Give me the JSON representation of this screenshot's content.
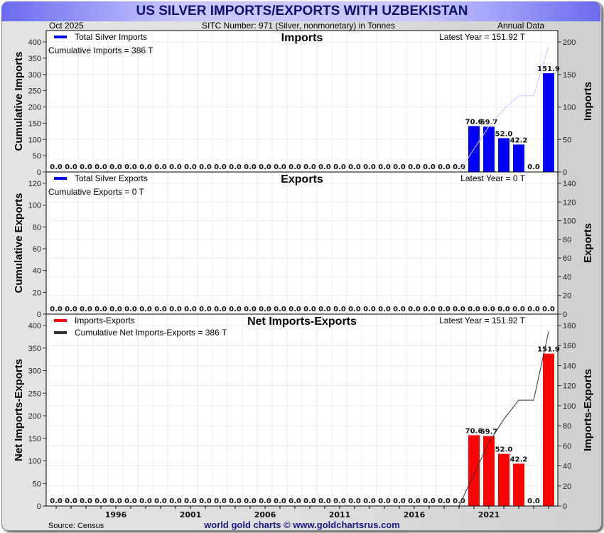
{
  "header": {
    "title": "US SILVER IMPORTS/EXPORTS WITH UZBEKISTAN",
    "date": "Oct  2025",
    "sitc": "SITC Number: 971 (Silver, nonmonetary) in Tonnes",
    "frequency": "Annual Data"
  },
  "footer": {
    "source": "Source: Census",
    "credit": "world gold charts © www.goldchartsrus.com"
  },
  "colors": {
    "imports": "#0000ff",
    "net": "#ff0000",
    "cum_imports": "#c8c8ff",
    "cum_net": "#333333"
  },
  "chart_data": [
    {
      "type": "bar",
      "title": "Imports",
      "legend": "Total Silver Imports",
      "cumulative_text": "Cumulative Imports = 386 T",
      "latest_text": "Latest Year = 151.92 T",
      "ylabel_left": "Cumulative Imports",
      "ylabel_right": "Imports",
      "ylim_left": [
        0,
        400
      ],
      "ylim_right": [
        0,
        200
      ],
      "yticks_left": [
        "0",
        "50",
        "100",
        "150",
        "200",
        "250",
        "300",
        "350",
        "400"
      ],
      "yticks_right": [
        "0",
        "50",
        "100",
        "150",
        "200"
      ],
      "x": [
        1992,
        1993,
        1994,
        1995,
        1996,
        1997,
        1998,
        1999,
        2000,
        2001,
        2002,
        2003,
        2004,
        2005,
        2006,
        2007,
        2008,
        2009,
        2010,
        2011,
        2012,
        2013,
        2014,
        2015,
        2016,
        2017,
        2018,
        2019,
        2020,
        2021,
        2022,
        2023,
        2024,
        2025
      ],
      "values": [
        0,
        0,
        0,
        0,
        0,
        0,
        0,
        0,
        0,
        0,
        0,
        0,
        0,
        0,
        0,
        0,
        0,
        0,
        0,
        0,
        0,
        0,
        0,
        0,
        0,
        0,
        0,
        0,
        70.6,
        69.7,
        52.0,
        42.2,
        0,
        151.9
      ],
      "labels": [
        "0.0",
        "0.0",
        "0.0",
        "0.0",
        "0.0",
        "0.0",
        "0.0",
        "0.0",
        "0.0",
        "0.0",
        "0.0",
        "0.0",
        "0.0",
        "0.0",
        "0.0",
        "0.0",
        "0.0",
        "0.0",
        "0.0",
        "0.0",
        "0.0",
        "0.0",
        "0.0",
        "0.0",
        "0.0",
        "0.0",
        "0.0",
        "0.0",
        "70.6",
        "69.7",
        "52.0",
        "42.2",
        "0.0",
        "151.9"
      ],
      "cumulative": [
        0,
        0,
        0,
        0,
        0,
        0,
        0,
        0,
        0,
        0,
        0,
        0,
        0,
        0,
        0,
        0,
        0,
        0,
        0,
        0,
        0,
        0,
        0,
        0,
        0,
        0,
        0,
        0,
        70.6,
        140.3,
        192.3,
        234.5,
        234.5,
        386.4
      ]
    },
    {
      "type": "bar",
      "title": "Exports",
      "legend": "Total Silver Exports",
      "cumulative_text": "Cumulative Exports = 0 T",
      "latest_text": "Latest Year = 0 T",
      "ylabel_left": "Cumulative Exports",
      "ylabel_right": "Exports",
      "ylim_left": [
        0,
        120
      ],
      "ylim_right": [
        0,
        140
      ],
      "yticks_left": [
        "0",
        "20",
        "40",
        "60",
        "80",
        "100",
        "120"
      ],
      "yticks_right": [
        "0",
        "20",
        "40",
        "60",
        "80",
        "100",
        "120",
        "140"
      ],
      "x": [
        1992,
        1993,
        1994,
        1995,
        1996,
        1997,
        1998,
        1999,
        2000,
        2001,
        2002,
        2003,
        2004,
        2005,
        2006,
        2007,
        2008,
        2009,
        2010,
        2011,
        2012,
        2013,
        2014,
        2015,
        2016,
        2017,
        2018,
        2019,
        2020,
        2021,
        2022,
        2023,
        2024,
        2025
      ],
      "values": [
        0,
        0,
        0,
        0,
        0,
        0,
        0,
        0,
        0,
        0,
        0,
        0,
        0,
        0,
        0,
        0,
        0,
        0,
        0,
        0,
        0,
        0,
        0,
        0,
        0,
        0,
        0,
        0,
        0,
        0,
        0,
        0,
        0,
        0
      ],
      "labels": [
        "0.0",
        "0.0",
        "0.0",
        "0.0",
        "0.0",
        "0.0",
        "0.0",
        "0.0",
        "0.0",
        "0.0",
        "0.0",
        "0.0",
        "0.0",
        "0.0",
        "0.0",
        "0.0",
        "0.0",
        "0.0",
        "0.0",
        "0.0",
        "0.0",
        "0.0",
        "0.0",
        "0.0",
        "0.0",
        "0.0",
        "0.0",
        "0.0",
        "0.0",
        "0.0",
        "0.0",
        "0.0",
        "0.0",
        "0.0"
      ],
      "cumulative": [
        0,
        0,
        0,
        0,
        0,
        0,
        0,
        0,
        0,
        0,
        0,
        0,
        0,
        0,
        0,
        0,
        0,
        0,
        0,
        0,
        0,
        0,
        0,
        0,
        0,
        0,
        0,
        0,
        0,
        0,
        0,
        0,
        0,
        0
      ]
    },
    {
      "type": "bar",
      "title": "Net Imports-Exports",
      "legend": "Imports-Exports",
      "legend2": "Cumulative Net Imports-Exports = 386 T",
      "latest_text": "Latest Year = 151.92 T",
      "ylabel_left": "Net Imports-Exports",
      "ylabel_right": "Imports-Exports",
      "ylim_left": [
        0,
        400
      ],
      "ylim_right": [
        0,
        180
      ],
      "yticks_left": [
        "0",
        "50",
        "100",
        "150",
        "200",
        "250",
        "300",
        "350",
        "400"
      ],
      "yticks_right": [
        "0",
        "20",
        "40",
        "60",
        "80",
        "100",
        "120",
        "140",
        "160",
        "180"
      ],
      "xticks": [
        "1996",
        "2001",
        "2006",
        "2011",
        "2016",
        "2021"
      ],
      "x": [
        1992,
        1993,
        1994,
        1995,
        1996,
        1997,
        1998,
        1999,
        2000,
        2001,
        2002,
        2003,
        2004,
        2005,
        2006,
        2007,
        2008,
        2009,
        2010,
        2011,
        2012,
        2013,
        2014,
        2015,
        2016,
        2017,
        2018,
        2019,
        2020,
        2021,
        2022,
        2023,
        2024,
        2025
      ],
      "values": [
        0,
        0,
        0,
        0,
        0,
        0,
        0,
        0,
        0,
        0,
        0,
        0,
        0,
        0,
        0,
        0,
        0,
        0,
        0,
        0,
        0,
        0,
        0,
        0,
        0,
        0,
        0,
        0,
        70.6,
        69.7,
        52.0,
        42.2,
        0,
        151.9
      ],
      "labels": [
        "0.0",
        "0.0",
        "0.0",
        "0.0",
        "0.0",
        "0.0",
        "0.0",
        "0.0",
        "0.0",
        "0.0",
        "0.0",
        "0.0",
        "0.0",
        "0.0",
        "0.0",
        "0.0",
        "0.0",
        "0.0",
        "0.0",
        "0.0",
        "0.0",
        "0.0",
        "0.0",
        "0.0",
        "0.0",
        "0.0",
        "0.0",
        "0.0",
        "70.6",
        "69.7",
        "52.0",
        "42.2",
        "0.0",
        "151.9"
      ],
      "cumulative": [
        0,
        0,
        0,
        0,
        0,
        0,
        0,
        0,
        0,
        0,
        0,
        0,
        0,
        0,
        0,
        0,
        0,
        0,
        0,
        0,
        0,
        0,
        0,
        0,
        0,
        0,
        0,
        0,
        70.6,
        140.3,
        192.3,
        234.5,
        234.5,
        386.4
      ]
    }
  ]
}
